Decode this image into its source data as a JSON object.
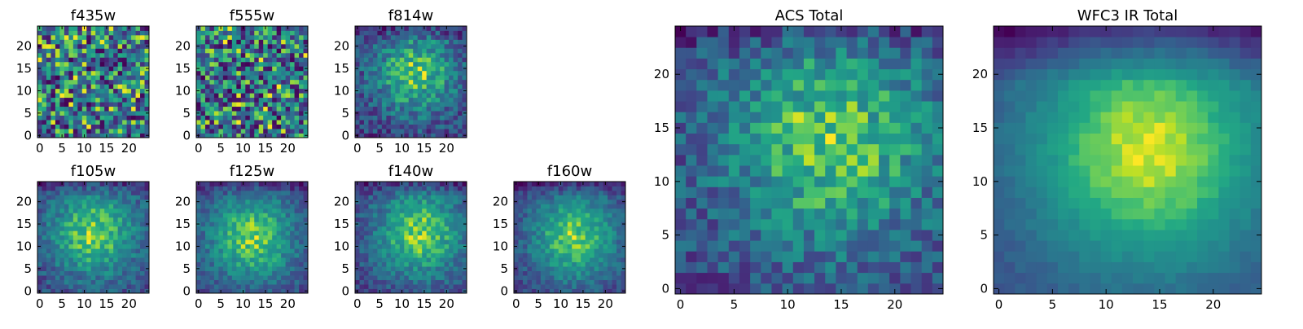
{
  "figure_title": "",
  "chart_data": [
    {
      "type": "heatmap",
      "title": "f435w",
      "grid_size": 25,
      "xlim": [
        0,
        24
      ],
      "ylim": [
        0,
        24
      ],
      "xticks": [
        0,
        5,
        10,
        15,
        20
      ],
      "yticks": [
        0,
        5,
        10,
        15,
        20
      ],
      "colormap": "viridis",
      "pattern": "noisy-uniform",
      "center": [
        12,
        12
      ],
      "noise": 0.45,
      "seed": 11
    },
    {
      "type": "heatmap",
      "title": "f555w",
      "grid_size": 25,
      "xlim": [
        0,
        24
      ],
      "ylim": [
        0,
        24
      ],
      "xticks": [
        0,
        5,
        10,
        15,
        20
      ],
      "yticks": [
        0,
        5,
        10,
        15,
        20
      ],
      "colormap": "viridis",
      "pattern": "noisy-uniform",
      "center": [
        12,
        12
      ],
      "noise": 0.42,
      "seed": 23
    },
    {
      "type": "heatmap",
      "title": "f814w",
      "grid_size": 25,
      "xlim": [
        0,
        24
      ],
      "ylim": [
        0,
        24
      ],
      "xticks": [
        0,
        5,
        10,
        15,
        20
      ],
      "yticks": [
        0,
        5,
        10,
        15,
        20
      ],
      "colormap": "viridis",
      "pattern": "blob",
      "center": [
        13,
        14
      ],
      "noise": 0.3,
      "seed": 37
    },
    {
      "type": "heatmap",
      "title": "f105w",
      "grid_size": 25,
      "xlim": [
        0,
        24
      ],
      "ylim": [
        0,
        24
      ],
      "xticks": [
        0,
        5,
        10,
        15,
        20
      ],
      "yticks": [
        0,
        5,
        10,
        15,
        20
      ],
      "colormap": "viridis",
      "pattern": "blob",
      "center": [
        12,
        13
      ],
      "noise": 0.22,
      "seed": 41
    },
    {
      "type": "heatmap",
      "title": "f125w",
      "grid_size": 25,
      "xlim": [
        0,
        24
      ],
      "ylim": [
        0,
        24
      ],
      "xticks": [
        0,
        5,
        10,
        15,
        20
      ],
      "yticks": [
        0,
        5,
        10,
        15,
        20
      ],
      "colormap": "viridis",
      "pattern": "blob",
      "center": [
        12,
        12
      ],
      "noise": 0.2,
      "seed": 53
    },
    {
      "type": "heatmap",
      "title": "f140w",
      "grid_size": 25,
      "xlim": [
        0,
        24
      ],
      "ylim": [
        0,
        24
      ],
      "xticks": [
        0,
        5,
        10,
        15,
        20
      ],
      "yticks": [
        0,
        5,
        10,
        15,
        20
      ],
      "colormap": "viridis",
      "pattern": "blob",
      "center": [
        14,
        13
      ],
      "noise": 0.2,
      "seed": 67
    },
    {
      "type": "heatmap",
      "title": "f160w",
      "grid_size": 25,
      "xlim": [
        0,
        24
      ],
      "ylim": [
        0,
        24
      ],
      "xticks": [
        0,
        5,
        10,
        15,
        20
      ],
      "yticks": [
        0,
        5,
        10,
        15,
        20
      ],
      "colormap": "viridis",
      "pattern": "blob",
      "center": [
        13,
        12
      ],
      "noise": 0.18,
      "seed": 79
    },
    {
      "type": "heatmap",
      "title": "ACS Total",
      "grid_size": 25,
      "xlim": [
        0,
        24
      ],
      "ylim": [
        0,
        24
      ],
      "xticks": [
        0,
        5,
        10,
        15,
        20
      ],
      "yticks": [
        0,
        5,
        10,
        15,
        20
      ],
      "colormap": "viridis",
      "pattern": "blob",
      "center": [
        14,
        14
      ],
      "noise": 0.3,
      "seed": 97
    },
    {
      "type": "heatmap",
      "title": "WFC3 IR Total",
      "grid_size": 25,
      "xlim": [
        0,
        24
      ],
      "ylim": [
        0,
        24
      ],
      "xticks": [
        0,
        5,
        10,
        15,
        20
      ],
      "yticks": [
        0,
        5,
        10,
        15,
        20
      ],
      "colormap": "viridis",
      "pattern": "smooth-blob",
      "center": [
        14,
        13
      ],
      "noise": 0.06,
      "seed": 101
    }
  ]
}
